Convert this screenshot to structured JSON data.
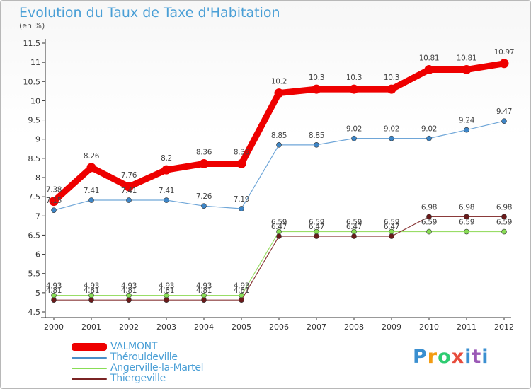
{
  "title": "Evolution du Taux de Taxe d'Habitation",
  "subtitle": "(en %)",
  "logo": "Proxiti",
  "colors": {
    "title": "#4a9fd6",
    "axis": "#333333",
    "valmont": "#ee0000",
    "therouldeville": "#4a8fc9",
    "angerville": "#88dd55",
    "thiergeville": "#7a2424"
  },
  "chart_data": {
    "type": "line",
    "title": "Evolution du Taux de Taxe d'Habitation",
    "ylabel": "(en %)",
    "xlabel": "",
    "ylim": [
      4.5,
      11.5
    ],
    "yticks": [
      "4.5",
      "5",
      "5.5",
      "6",
      "6.5",
      "7",
      "7.5",
      "8",
      "8.5",
      "9",
      "9.5",
      "10",
      "10.5",
      "11",
      "11.5"
    ],
    "x": [
      "2000",
      "2001",
      "2002",
      "2003",
      "2004",
      "2005",
      "2006",
      "2007",
      "2008",
      "2009",
      "2010",
      "2011",
      "2012"
    ],
    "grid": false,
    "legend": "bottom-left",
    "series": [
      {
        "name": "VALMONT",
        "color": "#ee0000",
        "values": [
          7.38,
          8.26,
          7.76,
          8.2,
          8.36,
          8.36,
          10.2,
          10.3,
          10.3,
          10.3,
          10.81,
          10.81,
          10.97
        ]
      },
      {
        "name": "Thérouldeville",
        "color": "#4a8fc9",
        "values": [
          7.15,
          7.41,
          7.41,
          7.41,
          7.26,
          7.19,
          8.85,
          8.85,
          9.02,
          9.02,
          9.02,
          9.24,
          9.47
        ]
      },
      {
        "name": "Angerville-la-Martel",
        "color": "#88dd55",
        "values": [
          4.93,
          4.93,
          4.93,
          4.93,
          4.93,
          4.93,
          6.59,
          6.59,
          6.59,
          6.59,
          6.59,
          6.59,
          6.59
        ]
      },
      {
        "name": "Thiergeville",
        "color": "#7a2424",
        "values": [
          4.81,
          4.81,
          4.81,
          4.81,
          4.81,
          4.81,
          6.47,
          6.47,
          6.47,
          6.47,
          6.98,
          6.98,
          6.98
        ]
      }
    ],
    "data_labels": [
      [
        "7.38",
        "8.26",
        "7.76",
        "8.2",
        "8.36",
        "8.36",
        "10.2",
        "10.3",
        "10.3",
        "10.3",
        "10.81",
        "10.81",
        "10.97"
      ],
      [
        "7.15",
        "7.41",
        "7.41",
        "7.41",
        "7.26",
        "7.19",
        "8.85",
        "8.85",
        "9.02",
        "9.02",
        "9.02",
        "9.24",
        "9.47"
      ],
      [
        "4.93",
        "4.93",
        "4.93",
        "4.93",
        "4.93",
        "4.93",
        "6.59",
        "6.59",
        "6.59",
        "6.59",
        "6.59",
        "6.59",
        "6.59"
      ],
      [
        "4.81",
        "4.81",
        "4.81",
        "4.81",
        "4.81",
        "4.81",
        "6.47",
        "6.47",
        "6.47",
        "6.47",
        "6.98",
        "6.98",
        "6.98"
      ]
    ]
  }
}
